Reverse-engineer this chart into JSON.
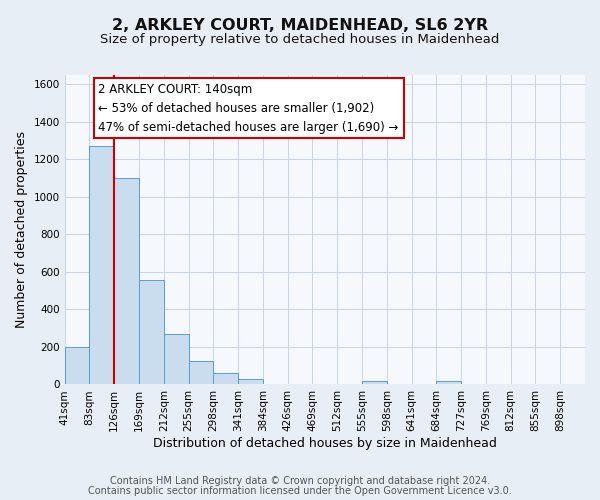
{
  "title": "2, ARKLEY COURT, MAIDENHEAD, SL6 2YR",
  "subtitle": "Size of property relative to detached houses in Maidenhead",
  "xlabel": "Distribution of detached houses by size in Maidenhead",
  "ylabel": "Number of detached properties",
  "footer_line1": "Contains HM Land Registry data © Crown copyright and database right 2024.",
  "footer_line2": "Contains public sector information licensed under the Open Government Licence v3.0.",
  "bin_labels": [
    "41sqm",
    "83sqm",
    "126sqm",
    "169sqm",
    "212sqm",
    "255sqm",
    "298sqm",
    "341sqm",
    "384sqm",
    "426sqm",
    "469sqm",
    "512sqm",
    "555sqm",
    "598sqm",
    "641sqm",
    "684sqm",
    "727sqm",
    "769sqm",
    "812sqm",
    "855sqm",
    "898sqm"
  ],
  "bar_heights": [
    200,
    1270,
    1100,
    555,
    270,
    125,
    60,
    30,
    0,
    0,
    0,
    0,
    20,
    0,
    0,
    20,
    0,
    0,
    0,
    0,
    0
  ],
  "bar_color": "#c9ddef",
  "bar_edge_color": "#5b9bd5",
  "ylim": [
    0,
    1650
  ],
  "yticks": [
    0,
    200,
    400,
    600,
    800,
    1000,
    1200,
    1400,
    1600
  ],
  "vline_x": 2,
  "vline_color": "#cc0000",
  "annotation_title": "2 ARKLEY COURT: 140sqm",
  "annotation_line1": "← 53% of detached houses are smaller (1,902)",
  "annotation_line2": "47% of semi-detached houses are larger (1,690) →",
  "annotation_box_color": "#ffffff",
  "annotation_box_edge_color": "#cc0000",
  "fig_background_color": "#e8eef5",
  "plot_background_color": "#f5f8fc",
  "grid_color": "#c8d4e4",
  "title_fontsize": 11.5,
  "subtitle_fontsize": 9.5,
  "xlabel_fontsize": 9,
  "ylabel_fontsize": 9,
  "tick_fontsize": 7.5,
  "annotation_fontsize": 8.5,
  "footer_fontsize": 7
}
